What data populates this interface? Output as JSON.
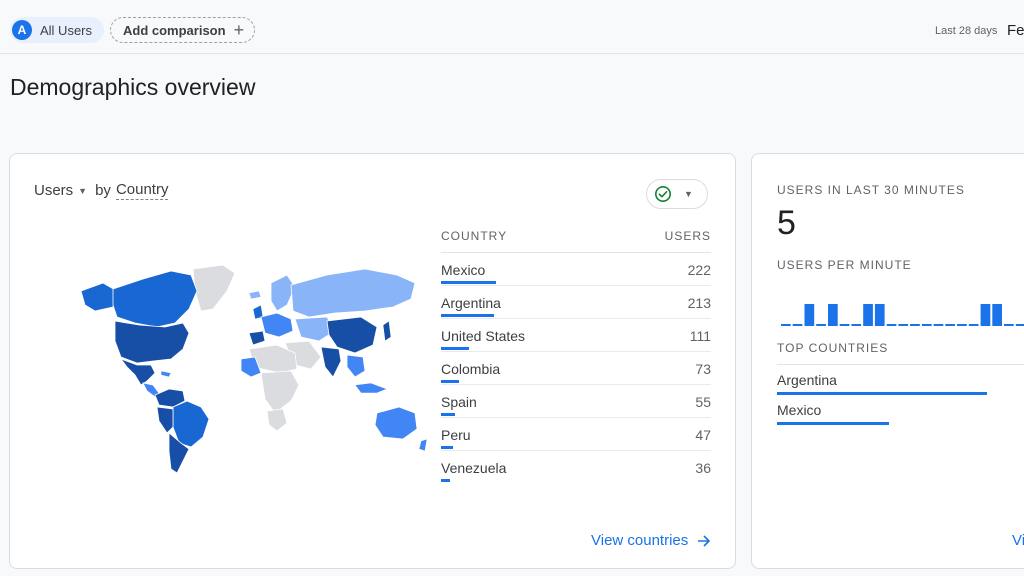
{
  "topbar": {
    "segment_initial": "A",
    "segment_label": "All Users",
    "add_comparison_label": "Add comparison",
    "date_range_label": "Last 28 days",
    "date_value_truncated": "Fe"
  },
  "page_title": "Demographics overview",
  "country_card": {
    "metric": "Users",
    "dimension_prefix": "by",
    "dimension": "Country",
    "col_country": "COUNTRY",
    "col_users": "USERS",
    "rows": [
      {
        "country": "Mexico",
        "users": "222",
        "share": 1.0
      },
      {
        "country": "Argentina",
        "users": "213",
        "share": 0.96
      },
      {
        "country": "United States",
        "users": "111",
        "share": 0.5
      },
      {
        "country": "Colombia",
        "users": "73",
        "share": 0.33
      },
      {
        "country": "Spain",
        "users": "55",
        "share": 0.25
      },
      {
        "country": "Peru",
        "users": "47",
        "share": 0.21
      },
      {
        "country": "Venezuela",
        "users": "36",
        "share": 0.16
      }
    ],
    "view_link": "View countries"
  },
  "realtime_card": {
    "title": "USERS IN LAST 30 MINUTES",
    "value": "5",
    "per_minute_label": "USERS PER MINUTE",
    "per_minute": [
      0,
      0,
      1,
      0,
      1,
      0,
      0,
      1,
      1,
      0,
      0,
      0,
      0,
      0,
      0,
      0,
      0,
      1,
      1,
      0,
      0,
      1,
      1
    ],
    "top_countries_label": "TOP COUNTRIES",
    "top_countries": [
      {
        "country": "Argentina",
        "share": 0.75
      },
      {
        "country": "Mexico",
        "share": 0.4
      }
    ],
    "view_link_truncated": "Vi"
  },
  "colors": {
    "accent": "#1a73e8",
    "map_dark": "#174ea6",
    "map_mid": "#1967d2",
    "map_light": "#4285f4",
    "map_pale": "#8ab4f8",
    "map_none": "#dadce0"
  },
  "icons": {
    "segment": "letter-avatar",
    "add": "plus-icon",
    "caret": "caret-down-icon",
    "check": "check-circle-icon",
    "arrow": "arrow-right-icon"
  }
}
